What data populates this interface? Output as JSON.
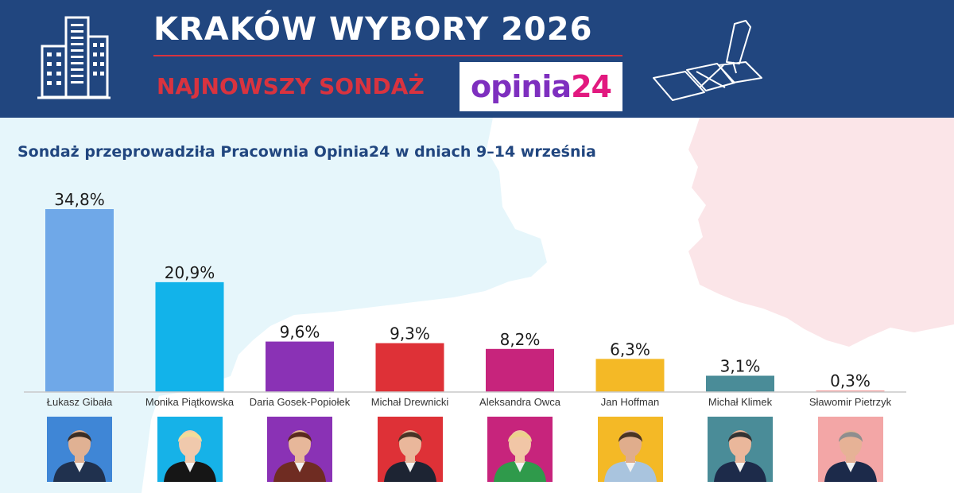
{
  "header": {
    "title": "KRAKÓW WYBORY 2026",
    "subtitle": "NAJNOWSZY SONDAŻ",
    "logo_part1": "opinia",
    "logo_part2": "24"
  },
  "caption": "Sondaż przeprowadziła Pracownia Opinia24 w dniach 9–14 września",
  "colors": {
    "header_bg": "#21467f",
    "accent_red": "#d9333f",
    "logo_purple": "#7e2fbf",
    "logo_pink": "#e2197f",
    "map_left": "#e6f6fb",
    "map_right": "#fbe5e8"
  },
  "chart_data": {
    "type": "bar",
    "title": "",
    "xlabel": "",
    "ylabel": "",
    "categories": [
      "Łukasz Gibała",
      "Monika Piątkowska",
      "Daria Gosek-Popiołek",
      "Michał Drewnicki",
      "Aleksandra Owca",
      "Jan Hoffman",
      "Michał Klimek",
      "Sławomir Pietrzyk"
    ],
    "values": [
      34.8,
      20.9,
      9.6,
      9.3,
      8.2,
      6.3,
      3.1,
      0.3
    ],
    "value_labels": [
      "34,8%",
      "20,9%",
      "9,6%",
      "9,3%",
      "8,2%",
      "6,3%",
      "3,1%",
      "0,3%"
    ],
    "colors": [
      "#6fa8e8",
      "#12b3ea",
      "#8a32b5",
      "#de3137",
      "#c7247c",
      "#f4b926",
      "#4a8c98",
      "#f3a6a6"
    ],
    "ylim": [
      0,
      34.8
    ],
    "grid": false,
    "legend": "none"
  },
  "photos": [
    {
      "name": "Łukasz Gibała",
      "bg": "#3f86d6",
      "skin": "#e0b193",
      "hair": "#3b2d24",
      "suit": "#20314e"
    },
    {
      "name": "Monika Piątkowska",
      "bg": "#16b2e8",
      "skin": "#f0c9ac",
      "hair": "#f1dc9a",
      "suit": "#161616"
    },
    {
      "name": "Daria Gosek-Popiołek",
      "bg": "#8a32b5",
      "skin": "#e7b79a",
      "hair": "#5a2a1e",
      "suit": "#6f2c22"
    },
    {
      "name": "Michał Drewnicki",
      "bg": "#de3137",
      "skin": "#eab79b",
      "hair": "#4a3426",
      "suit": "#1d2433"
    },
    {
      "name": "Aleksandra Owca",
      "bg": "#c7247c",
      "skin": "#f1c6a6",
      "hair": "#ecd28c",
      "suit": "#2f9a4b"
    },
    {
      "name": "Jan Hoffman",
      "bg": "#f4b926",
      "skin": "#e0ad8c",
      "hair": "#4a3425",
      "suit": "#a9c4de"
    },
    {
      "name": "Michał Klimek",
      "bg": "#4a8c98",
      "skin": "#eab79b",
      "hair": "#333333",
      "suit": "#1d2b4a"
    },
    {
      "name": "Sławomir Pietrzyk",
      "bg": "#f3a6a6",
      "skin": "#e6b296",
      "hair": "#8e8e8e",
      "suit": "#1c2a4a"
    }
  ]
}
